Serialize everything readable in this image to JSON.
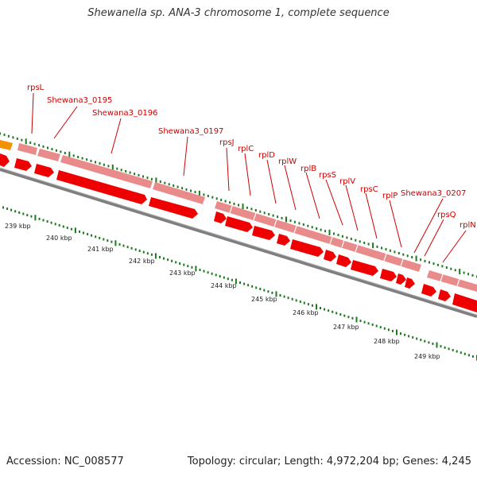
{
  "title": "Shewanella sp. ANA-3 chromosome 1, complete sequence",
  "footer": {
    "accession": "Accession: NC_008577",
    "stats": "Topology: circular; Length: 4,972,204 bp; Genes: 4,245"
  },
  "colors": {
    "gene_feature": "#ee0000",
    "cds_feature": "#e98b8b",
    "partial_gene": "#f39200",
    "tick": "#1e7a1e",
    "backbone": "#7f7f7f",
    "label": "#cc0000"
  },
  "gene_labels": [
    "rpsL",
    "Shewana3_0195",
    "Shewana3_0196",
    "Shewana3_0197",
    "rpsJ",
    "rplC",
    "rplD",
    "rplW",
    "rplB",
    "rpsS",
    "rplV",
    "rpsC",
    "rplP",
    "Shewana3_0207",
    "rpsQ",
    "rplN"
  ],
  "kbp_labels": [
    "239 kbp",
    "240 kbp",
    "241 kbp",
    "242 kbp",
    "243 kbp",
    "244 kbp",
    "245 kbp",
    "246 kbp",
    "247 kbp",
    "248 kbp",
    "249 kbp"
  ]
}
